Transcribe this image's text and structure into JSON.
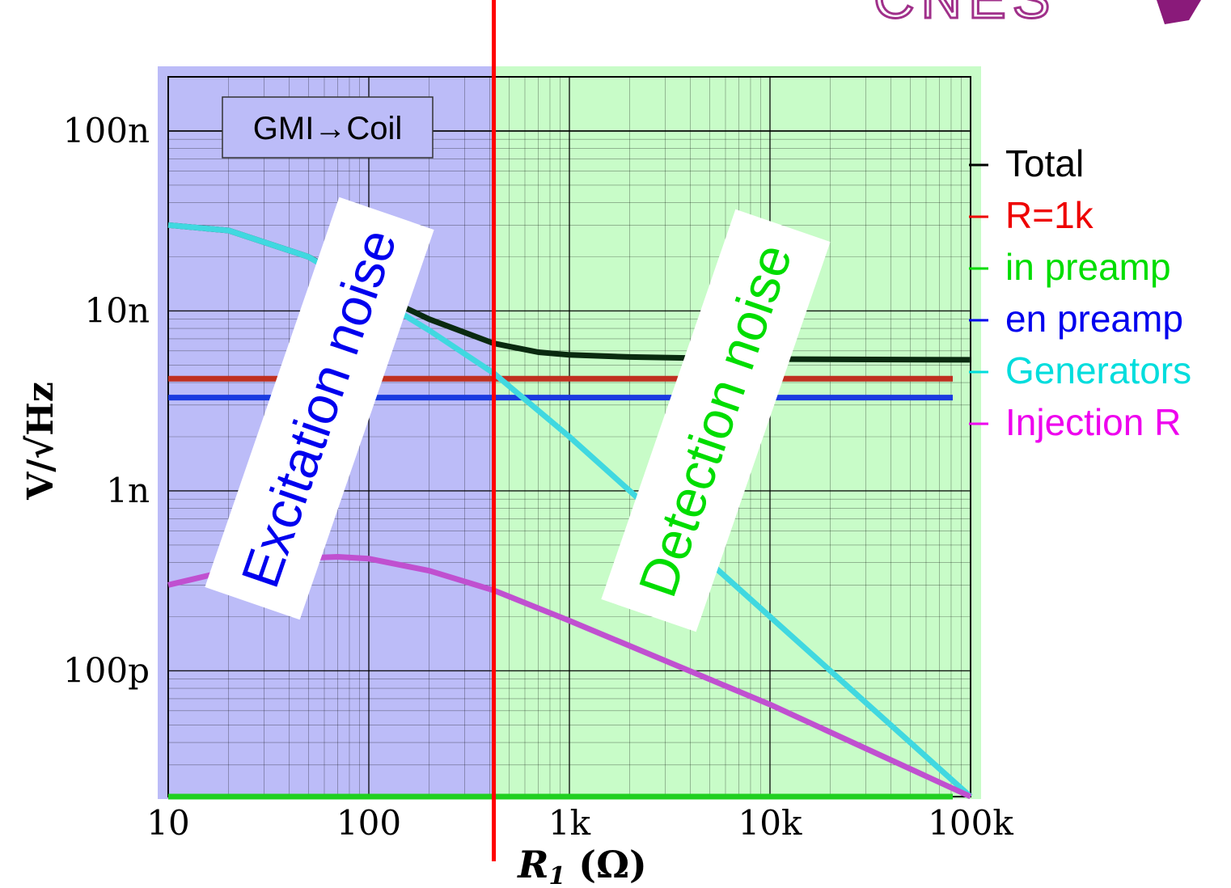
{
  "logo_text": "CNES",
  "chart_data": {
    "type": "line",
    "x_scale": "log",
    "y_scale": "log",
    "xlim": [
      10,
      100000
    ],
    "ylim": [
      2e-11,
      2e-07
    ],
    "xlabel_main": "R",
    "xlabel_sub": "1",
    "xlabel_unit": " (Ω)",
    "ylabel": "V/√Hz",
    "x_ticks": [
      {
        "value": 10,
        "label": "10"
      },
      {
        "value": 100,
        "label": "100"
      },
      {
        "value": 1000,
        "label": "1k"
      },
      {
        "value": 10000,
        "label": "10k"
      },
      {
        "value": 100000,
        "label": "100k"
      }
    ],
    "y_ticks": [
      {
        "value": 1e-10,
        "label": "100p"
      },
      {
        "value": 1e-09,
        "label": "1n"
      },
      {
        "value": 1e-08,
        "label": "10n"
      },
      {
        "value": 1e-07,
        "label": "100n"
      }
    ],
    "grid": true,
    "legend_position": "right",
    "regions": [
      {
        "label": "Excitation noise",
        "from": 10,
        "to": 420,
        "fill": "#bcbcf8",
        "text_color": "#0000ee"
      },
      {
        "label": "Detection noise",
        "from": 420,
        "to": 100000,
        "fill": "#c8fcc8",
        "text_color": "#00dd00"
      }
    ],
    "marker_line": {
      "x": 420,
      "color": "#ff0000"
    },
    "annotation": "GMI→Coil",
    "series": [
      {
        "name": "Total",
        "color": "#000000",
        "line_color": "#0a2a10",
        "x": [
          10,
          20,
          50,
          100,
          200,
          420,
          700,
          1000,
          2000,
          5000,
          10000,
          100000
        ],
        "y": [
          3e-08,
          2.8e-08,
          2e-08,
          1.3e-08,
          9e-09,
          6.6e-09,
          5.9e-09,
          5.7e-09,
          5.55e-09,
          5.45e-09,
          5.4e-09,
          5.35e-09
        ]
      },
      {
        "name": "R=1k",
        "color": "#ee0000",
        "line_color": "#c03020",
        "x": [
          10,
          100000
        ],
        "y": [
          4.2e-09,
          4.2e-09
        ]
      },
      {
        "name": "in preamp",
        "color": "#00dd00",
        "line_color": "#20d020",
        "x": [
          10,
          100000
        ],
        "y": [
          2e-11,
          2e-11
        ]
      },
      {
        "name": "en preamp",
        "color": "#0000ee",
        "line_color": "#1a3ae0",
        "x": [
          10,
          100000
        ],
        "y": [
          3.3e-09,
          3.3e-09
        ]
      },
      {
        "name": "Generators",
        "color": "#00dddd",
        "line_color": "#40d8e0",
        "x": [
          10,
          20,
          50,
          100,
          200,
          420,
          1000,
          10000,
          100000
        ],
        "y": [
          3e-08,
          2.8e-08,
          2e-08,
          1.25e-08,
          7.8e-09,
          4.5e-09,
          2e-09,
          2e-10,
          2e-11
        ]
      },
      {
        "name": "Injection R",
        "color": "#ee00ee",
        "line_color": "#c050d0",
        "x": [
          10,
          20,
          40,
          70,
          100,
          200,
          420,
          1000,
          10000,
          100000
        ],
        "y": [
          3e-10,
          3.6e-10,
          4.2e-10,
          4.3e-10,
          4.2e-10,
          3.6e-10,
          2.8e-10,
          1.9e-10,
          6.5e-11,
          2e-11
        ]
      }
    ]
  }
}
